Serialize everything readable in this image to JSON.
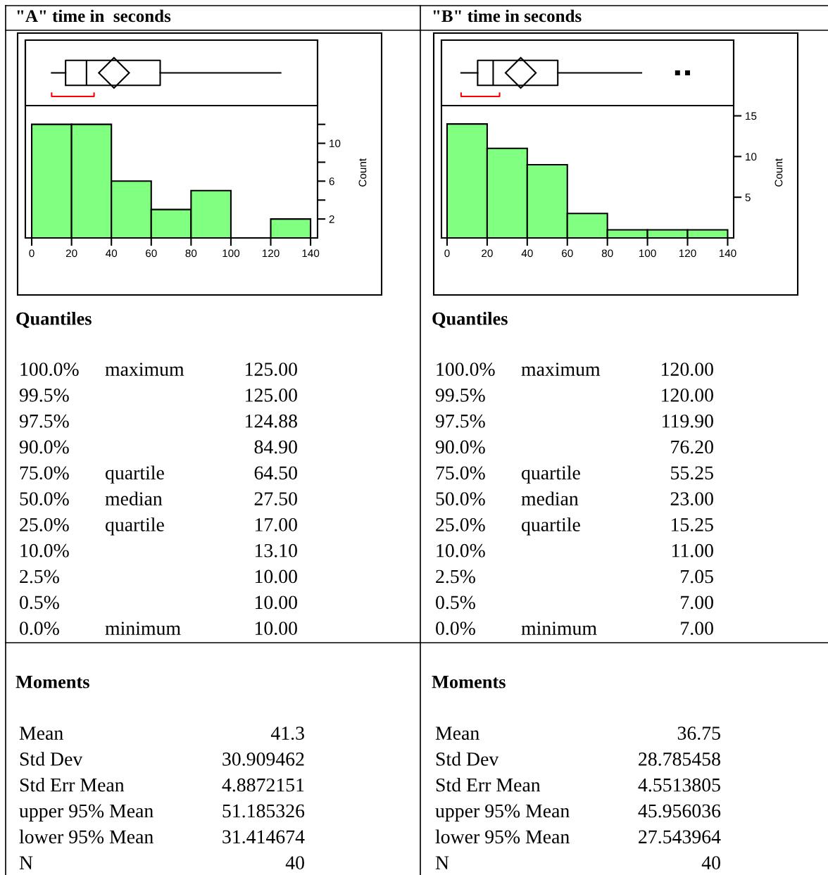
{
  "chart_data": [
    {
      "type": "box",
      "title": "\"A\" time in  seconds",
      "categories": [
        null
      ],
      "orientation": "horizontal",
      "boxes": [
        {
          "low": 10,
          "q1": 17,
          "median": 27.5,
          "q3": 64.5,
          "high": 125,
          "mean": 41.3
        }
      ],
      "xlim": [
        -3.2,
        143.5
      ],
      "xticks": [
        0,
        20,
        40,
        60,
        80,
        100,
        120,
        140
      ],
      "tick_labels": false
    },
    {
      "type": "histogram",
      "bins": [
        0,
        20,
        40,
        60,
        80,
        100,
        120,
        140
      ],
      "values": [
        12,
        12,
        6,
        3,
        5,
        0,
        2
      ],
      "color": "#80ff80",
      "xlim": [
        -3.2,
        143.5
      ],
      "xticks": [
        0,
        20,
        40,
        60,
        80,
        100,
        120,
        140
      ],
      "ylim": [
        0,
        20.9
      ],
      "yticks": [
        2,
        {
          "value": 4,
          "label": null
        },
        6,
        {
          "value": 8,
          "label": null
        },
        10,
        {
          "value": 12,
          "label": null
        }
      ],
      "ylabel": "Count"
    },
    {
      "type": "box",
      "title": "\"B\" time in seconds",
      "categories": [
        null
      ],
      "orientation": "horizontal",
      "boxes": [
        {
          "low": 7,
          "q1": 15.25,
          "median": 23,
          "q3": 55.25,
          "high": 97,
          "mean": 36.75,
          "outliers": [
            115,
            120
          ]
        }
      ],
      "xlim": [
        -2.8,
        143
      ],
      "xticks": [
        0,
        20,
        40,
        60,
        80,
        100,
        120,
        140
      ],
      "tick_labels": false
    },
    {
      "type": "histogram",
      "bins": [
        0,
        20,
        40,
        60,
        80,
        100,
        120,
        140
      ],
      "values": [
        14,
        11,
        9,
        3,
        1,
        1,
        1
      ],
      "color": "#80ff80",
      "xlim": [
        -2.8,
        143
      ],
      "xticks": [
        0,
        20,
        40,
        60,
        80,
        100,
        120,
        140
      ],
      "ylim": [
        0,
        24.3
      ],
      "yticks": [
        5,
        10,
        15
      ],
      "ylabel": "Count"
    },
    {
      "type": "other",
      "title": "Quantiles",
      "y_categories": [
        "100.0%",
        "99.5%",
        "97.5%",
        "90.0%",
        "75.0%",
        "50.0%",
        "25.0%",
        "10.0%",
        "2.5%",
        "0.5%",
        "0.0%"
      ],
      "categories": [
        "maximum",
        null,
        null,
        null,
        "quartile",
        "median",
        "quartile",
        null,
        null,
        null,
        "minimum"
      ],
      "annotations": [
        "125.00",
        "125.00",
        "124.88",
        "84.90",
        "64.50",
        "27.50",
        "17.00",
        "13.10",
        "10.00",
        "10.00",
        "10.00"
      ]
    },
    {
      "type": "other",
      "title": "Quantiles",
      "y_categories": [
        "100.0%",
        "99.5%",
        "97.5%",
        "90.0%",
        "75.0%",
        "50.0%",
        "25.0%",
        "10.0%",
        "2.5%",
        "0.5%",
        "0.0%"
      ],
      "categories": [
        "maximum",
        null,
        null,
        null,
        "quartile",
        "median",
        "quartile",
        null,
        null,
        null,
        "minimum"
      ],
      "annotations": [
        "120.00",
        "120.00",
        "119.90",
        "76.20",
        "55.25",
        "23.00",
        "15.25",
        "11.00",
        "7.05",
        "7.00",
        "7.00"
      ]
    },
    {
      "type": "other",
      "title": "Moments",
      "y_categories": [
        "Mean",
        "Std Dev",
        "Std Err Mean",
        "upper 95% Mean",
        "lower 95% Mean",
        "N"
      ],
      "annotations": [
        "41.3",
        "30.909462",
        "4.8872151",
        "51.185326",
        "31.414674",
        "40"
      ]
    },
    {
      "type": "other",
      "title": "Moments",
      "y_categories": [
        "Mean",
        "Std Dev",
        "Std Err Mean",
        "upper 95% Mean",
        "lower 95% Mean",
        "N"
      ],
      "annotations": [
        "36.75",
        "28.785458",
        "4.5513805",
        "45.956036",
        "27.543964",
        "40"
      ]
    }
  ]
}
